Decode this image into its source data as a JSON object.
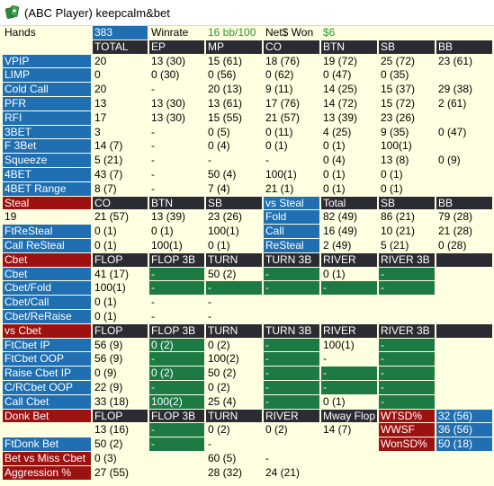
{
  "window": {
    "title": "(ABC Player) keepcalm&bet",
    "icon": "poker-cards-icon"
  },
  "colors": {
    "panel_bg": "#ffffe1",
    "stat_blue": "#1f6fb2",
    "header_dark": "#2b2b33",
    "header_red": "#9e1111",
    "value_green": "#1d7a45",
    "winrate_green": "#2a9a2a"
  },
  "rows": [
    [
      "Hands",
      "383",
      "Winrate",
      "16 bb/100",
      "Net$ Won",
      "$6",
      "",
      ""
    ],
    [
      "",
      "TOTAL",
      "EP",
      "MP",
      "CO",
      "BTN",
      "SB",
      "BB"
    ],
    [
      "VPIP",
      "20",
      "13 (30)",
      "15 (61)",
      "18 (76)",
      "19 (72)",
      "25 (72)",
      "23 (61)"
    ],
    [
      "LIMP",
      "0",
      "0 (30)",
      "0 (56)",
      "0 (62)",
      "0 (47)",
      "0 (35)",
      ""
    ],
    [
      "Cold Call",
      "20",
      "-",
      "20 (13)",
      "9 (11)",
      "14 (25)",
      "15 (37)",
      "29 (38)"
    ],
    [
      "PFR",
      "13",
      "13 (30)",
      "13 (61)",
      "17 (76)",
      "14 (72)",
      "15 (72)",
      "2 (61)"
    ],
    [
      "RFI",
      "17",
      "13 (30)",
      "15 (55)",
      "21 (57)",
      "13 (39)",
      "23 (26)",
      ""
    ],
    [
      "3BET",
      "3",
      "-",
      "0 (5)",
      "0 (11)",
      "4 (25)",
      "9 (35)",
      "0 (47)"
    ],
    [
      "F 3Bet",
      "14 (7)",
      "-",
      "0 (4)",
      "0 (1)",
      "0 (1)",
      "100(1)",
      ""
    ],
    [
      "Squeeze",
      "5 (21)",
      "-",
      "-",
      "-",
      "0 (4)",
      "13 (8)",
      "0 (9)"
    ],
    [
      "4BET",
      "43 (7)",
      "-",
      "50 (4)",
      "100(1)",
      "0 (1)",
      "0 (1)",
      ""
    ],
    [
      "4BET Range",
      "8 (7)",
      "-",
      "7 (4)",
      "21 (1)",
      "0 (1)",
      "0 (1)",
      ""
    ],
    [
      "Steal",
      "CO",
      "BTN",
      "SB",
      "vs Steal",
      "Total",
      "SB",
      "BB"
    ],
    [
      "19",
      "21 (57)",
      "13 (39)",
      "23 (26)",
      "Fold",
      "82 (49)",
      "86 (21)",
      "79 (28)"
    ],
    [
      "FtReSteal",
      "0 (1)",
      "0 (1)",
      "100(1)",
      "Call",
      "16 (49)",
      "10 (21)",
      "21 (28)"
    ],
    [
      "Call ReSteal",
      "0 (1)",
      "100(1)",
      "0 (1)",
      "ReSteal",
      "2 (49)",
      "5 (21)",
      "0 (28)"
    ],
    [
      "Cbet",
      "FLOP",
      "FLOP 3B",
      "TURN",
      "TURN 3B",
      "RIVER",
      "RIVER 3B",
      ""
    ],
    [
      "Cbet",
      "41 (17)",
      "-",
      "50 (2)",
      "-",
      "0 (1)",
      "-",
      ""
    ],
    [
      "Cbet/Fold",
      "100(1)",
      "-",
      "-",
      "-",
      "-",
      "-",
      ""
    ],
    [
      "Cbet/Call",
      "0 (1)",
      "-",
      "-",
      "",
      "",
      "",
      ""
    ],
    [
      "Cbet/ReRaise",
      "0 (1)",
      "-",
      "-",
      "",
      "",
      "",
      ""
    ],
    [
      "vs Cbet",
      "FLOP",
      "FLOP 3B",
      "TURN",
      "TURN 3B",
      "RIVER",
      "RIVER 3B",
      ""
    ],
    [
      "FtCbet IP",
      "56 (9)",
      "0 (2)",
      "0 (2)",
      "-",
      "100(1)",
      "-",
      ""
    ],
    [
      "FtCbet OOP",
      "56 (9)",
      "-",
      "100(2)",
      "-",
      "-",
      "-",
      ""
    ],
    [
      "Raise Cbet IP",
      "0 (9)",
      "0 (2)",
      "50 (2)",
      "-",
      "-",
      "-",
      ""
    ],
    [
      "C/RCbet OOP",
      "22 (9)",
      "-",
      "0 (2)",
      "-",
      "-",
      "-",
      ""
    ],
    [
      "Call Cbet",
      "33 (18)",
      "100(2)",
      "25 (4)",
      "-",
      "0 (1)",
      "-",
      ""
    ],
    [
      "Donk Bet",
      "FLOP",
      "FLOP 3B",
      "TURN",
      "RIVER",
      "Mway Flop",
      "WTSD%",
      "32 (56)"
    ],
    [
      "",
      "13 (16)",
      "-",
      "0 (2)",
      "0 (2)",
      "14 (7)",
      "WWSF",
      "36 (56)"
    ],
    [
      "FtDonk Bet",
      "50 (2)",
      "-",
      "-",
      "",
      "",
      "WonSD%",
      "50 (18)"
    ],
    [
      "Bet vs Miss Cbet",
      "0 (3)",
      "",
      "60 (5)",
      "-",
      "",
      "",
      ""
    ],
    [
      "Aggression %",
      "27 (55)",
      "",
      "28 (32)",
      "24 (21)",
      "",
      "",
      ""
    ]
  ]
}
